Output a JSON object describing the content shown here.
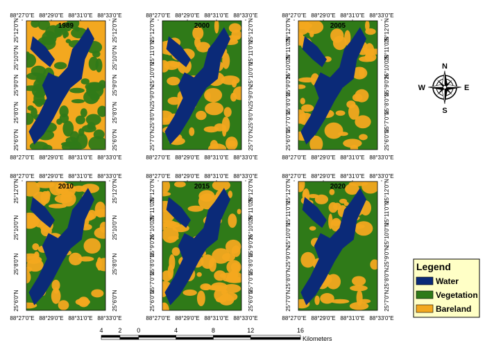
{
  "legend": {
    "title": "Legend",
    "items": [
      {
        "label": "Water",
        "color": "#0b2a78"
      },
      {
        "label": "Vegetation",
        "color": "#2f7a18"
      },
      {
        "label": "Bareland",
        "color": "#f3a81f"
      }
    ]
  },
  "compass": {
    "n": "N",
    "s": "S",
    "e": "E",
    "w": "W"
  },
  "scalebar": {
    "ticks": [
      "4",
      "2",
      "0",
      "4",
      "8",
      "12",
      "16"
    ],
    "unit": "Kilometers"
  },
  "panels": [
    {
      "year": "1989",
      "x_ticks": [
        "88°27'0\"E",
        "88°29'0\"E",
        "88°31'0\"E",
        "88°33'0\"E"
      ],
      "y_ticks": [
        "25°12'0\"N",
        "25°10'0\"N",
        "25°9'0\"N",
        "25°8'0\"N",
        "25°6'0\"N"
      ]
    },
    {
      "year": "2000",
      "x_ticks": [
        "88°27'0\"E",
        "88°29'0\"E",
        "88°31'0\"E",
        "88°33'0\"E"
      ],
      "y_ticks": [
        "25°12'0\"N",
        "25°11'0\"N",
        "25°10'0\"N",
        "25°9'0\"N",
        "25°8'0\"N",
        "25°7'0\"N"
      ]
    },
    {
      "year": "2005",
      "x_ticks": [
        "88°27'0\"E",
        "88°29'0\"E",
        "88°31'0\"E",
        "88°33'0\"E"
      ],
      "y_ticks": [
        "25°12'0\"N",
        "25°11'0\"N",
        "25°10'0\"N",
        "25°9'0\"N",
        "25°8'0\"N",
        "25°7'0\"N",
        "25°6'0\"N"
      ]
    },
    {
      "year": "2010",
      "x_ticks": [
        "88°27'0\"E",
        "88°29'0\"E",
        "88°31'0\"E",
        "88°33'0\"E"
      ],
      "y_ticks": [
        "25°12'0\"N",
        "25°10'0\"N",
        "25°8'0\"N",
        "25°6'0\"N"
      ]
    },
    {
      "year": "2015",
      "x_ticks": [
        "88°27'0\"E",
        "88°29'0\"E",
        "88°31'0\"E",
        "88°33'0\"E"
      ],
      "y_ticks": [
        "25°12'0\"N",
        "25°11'0\"N",
        "25°10'0\"N",
        "25°9'0\"N",
        "25°8'0\"N",
        "25°7'0\"N",
        "25°6'0\"N"
      ]
    },
    {
      "year": "2020",
      "x_ticks": [
        "88°27'0\"E",
        "88°29'0\"E",
        "88°31'0\"E",
        "88°33'0\"E"
      ],
      "y_ticks": [
        "25°12'0\"N",
        "25°11'0\"N",
        "25°10'0\"N",
        "25°9'0\"N",
        "25°8'0\"N",
        "25°7'0\"N"
      ]
    }
  ]
}
